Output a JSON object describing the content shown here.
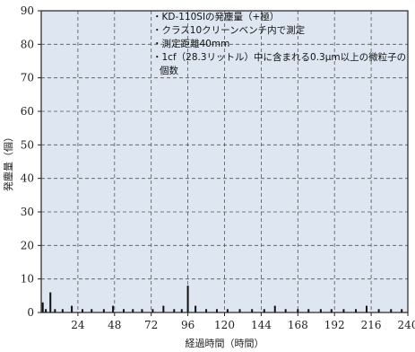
{
  "chart_data": {
    "type": "bar",
    "xlabel": "経過時間（時間）",
    "ylabel": "発塵量（個）",
    "xlim": [
      0,
      240
    ],
    "ylim": [
      0,
      90
    ],
    "xticks": [
      24,
      48,
      72,
      96,
      120,
      144,
      168,
      192,
      216,
      240
    ],
    "yticks": [
      0,
      10,
      20,
      30,
      40,
      50,
      60,
      70,
      80,
      90
    ],
    "grid": true,
    "background": "#dde6f1",
    "annotations": [
      "・KD-110SIの発塵量（+極）",
      "・クラス10クリーンベンチ内で測定",
      "・測定距離40mm",
      "・1cf（28.3リットル）中に含まれる0.3μm以上の微粒子の",
      "個数"
    ],
    "x": [
      1,
      3,
      6,
      9,
      14,
      20,
      27,
      33,
      41,
      47,
      54,
      60,
      66,
      73,
      80,
      87,
      92,
      96,
      101,
      108,
      115,
      122,
      130,
      138,
      146,
      153,
      160,
      168,
      175,
      183,
      190,
      198,
      206,
      213,
      221,
      229,
      236
    ],
    "values": [
      3,
      1,
      6,
      1,
      1,
      2,
      1,
      1,
      1,
      2,
      1,
      1,
      1,
      1,
      2,
      1,
      1,
      8,
      2,
      1,
      1,
      1,
      1,
      1,
      1,
      2,
      1,
      1,
      1,
      1,
      1,
      1,
      1,
      2,
      1,
      1,
      1
    ]
  }
}
